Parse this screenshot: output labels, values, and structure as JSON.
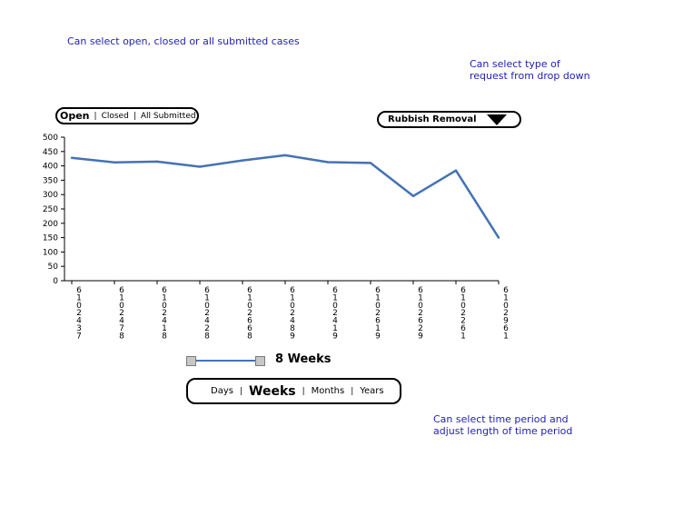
{
  "notes": {
    "case_filter": "Can select open, closed or all submitted cases",
    "request_type": [
      "Can select type of",
      "request from drop down"
    ],
    "time_period": [
      "Can select time period and",
      "adjust length of time period"
    ]
  },
  "case_filter": {
    "options": [
      "Open",
      "Closed",
      "All Submitted"
    ],
    "selected": "Open",
    "separator": "|"
  },
  "request_dropdown": {
    "selected": "Rubbish Removal"
  },
  "slider": {
    "value_label": "8 Weeks"
  },
  "period_group": {
    "options": [
      "Days",
      "Weeks",
      "Months",
      "Years"
    ],
    "selected": "Weeks",
    "separator": "|"
  },
  "colors": {
    "line": "#4472b5",
    "annotation": "#1f1fb4"
  },
  "chart_data": {
    "type": "line",
    "categories": [
      "6102437",
      "6102478",
      "6102418",
      "6102428",
      "6102668",
      "6102489",
      "6102419",
      "6102619",
      "6102629",
      "6102261",
      "6102961"
    ],
    "series": [
      {
        "values": [
          428,
          412,
          415,
          397,
          419,
          437,
          413,
          410,
          295,
          384,
          150
        ]
      }
    ],
    "ylim": [
      0,
      500
    ],
    "yticks": [
      0,
      50,
      100,
      150,
      200,
      250,
      300,
      350,
      400,
      450,
      500
    ],
    "grid": false
  }
}
